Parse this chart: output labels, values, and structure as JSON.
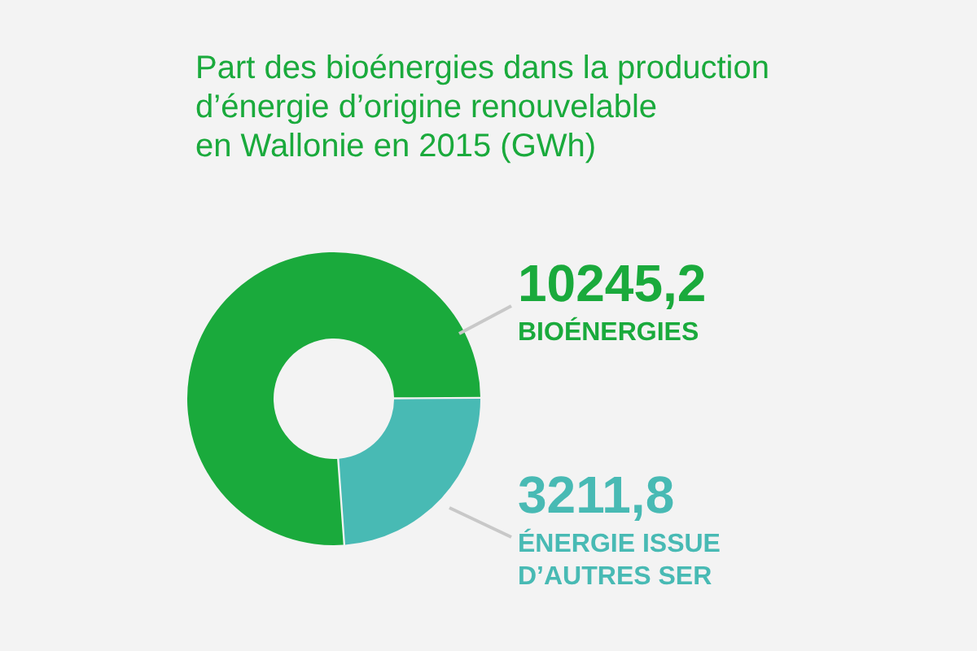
{
  "chart_data": {
    "type": "donut",
    "title": "Part des bioénergies dans la production\nd’énergie d’origine renouvelable\nen Wallonie en 2015 (GWh)",
    "categories": [
      "BIOÉNERGIES",
      "ÉNERGIE ISSUE\nD’AUTRES SER"
    ],
    "values": [
      10245.2,
      3211.8
    ],
    "value_labels": [
      "10245,2",
      "3211,8"
    ],
    "colors": [
      "#1aaa3c",
      "#48bab4"
    ]
  }
}
